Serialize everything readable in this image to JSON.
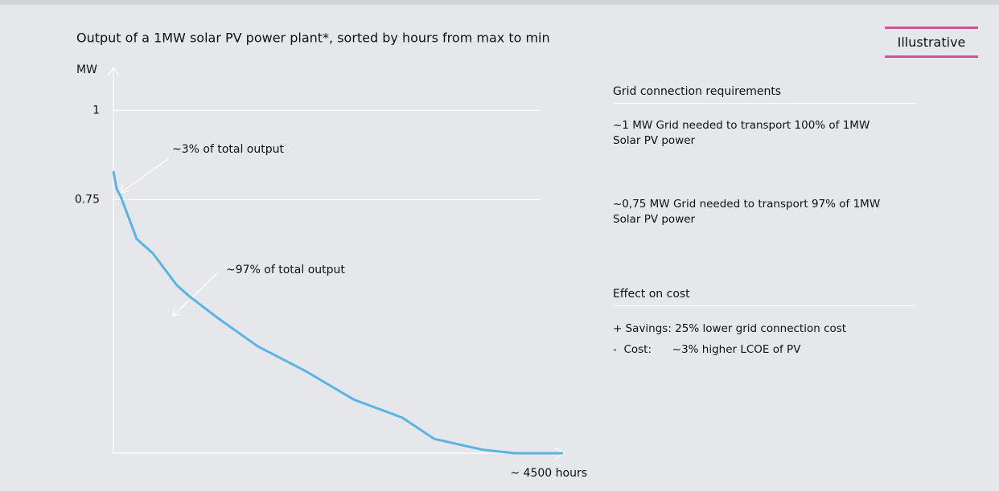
{
  "chart_data": {
    "type": "line",
    "title": "Output of a 1MW solar PV power plant*, sorted by hours from max to min",
    "y_label": "MW",
    "x_label": "~ 4500 hours",
    "x": [
      0,
      32,
      72,
      153,
      233,
      394,
      636,
      757,
      1038,
      1441,
      1924,
      2407,
      2890,
      3212,
      3695,
      4017,
      4500
    ],
    "values": [
      0.83,
      0.78,
      0.76,
      0.7,
      0.64,
      0.6,
      0.51,
      0.48,
      0.42,
      0.34,
      0.27,
      0.19,
      0.14,
      0.08,
      0.05,
      0.04,
      0.04
    ],
    "color": "#5ab4e5",
    "xlim": [
      0,
      4500
    ],
    "ylim": [
      0.04,
      1.12
    ],
    "yticks": [
      {
        "value": 0.75,
        "label": "0.75"
      },
      1
    ],
    "grid": true,
    "annotations": [
      "~3% of total output",
      "~97% of total output"
    ]
  },
  "badge": "Illustrative",
  "panel": {
    "section1": {
      "heading": "Grid connection requirements",
      "items": [
        "~1 MW Grid needed to transport 100% of 1MW Solar PV power",
        "~0,75 MW Grid needed to transport 97% of 1MW Solar PV power"
      ]
    },
    "section2": {
      "heading": "Effect on cost",
      "items": [
        "+ Savings: 25% lower grid connection cost",
        "-  Cost:      ~3% higher LCOE of PV"
      ]
    }
  }
}
